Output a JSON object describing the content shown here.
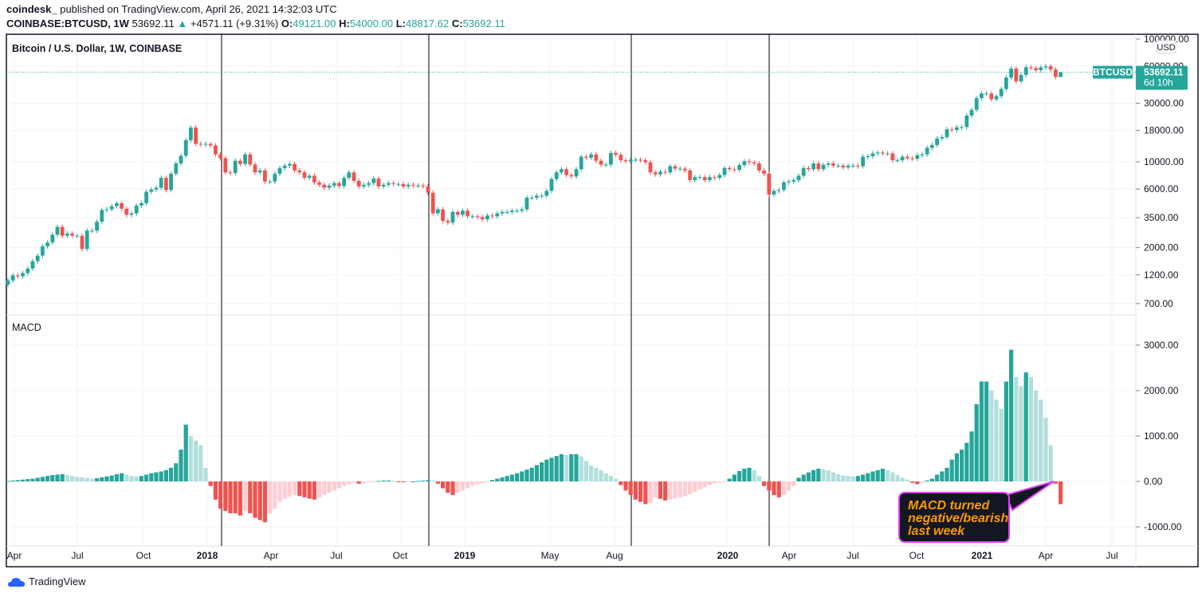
{
  "header": {
    "author": "coindesk_",
    "published": "published on TradingView.com, April 26, 2021 14:32:03 UTC",
    "symbol": "COINBASE:BTCUSD, 1W",
    "last": "53692.11",
    "change": "+4571.11 (+9.31%)",
    "o_label": "O:",
    "o": "49121.00",
    "h_label": "H:",
    "h": "54000.00",
    "l_label": "L:",
    "l": "48817.62",
    "c_label": "C:",
    "c": "53692.11"
  },
  "pane_title": "Bitcoin / U.S. Dollar, 1W, COINBASE",
  "macd_title": "MACD",
  "currency_badge": "USD",
  "price_tag": {
    "symbol": "BTCUSD",
    "price": "53692.11",
    "countdown": "6d 10h"
  },
  "annotation": {
    "lines": [
      "MACD turned",
      "negative/bearish",
      "last week"
    ]
  },
  "footer_logo": "TradingView",
  "colors": {
    "up": "#26a69a",
    "down": "#ef5350",
    "up_light": "#b2dfdb",
    "down_light": "#ffcdd2",
    "annotation_border": "#e040fb",
    "annotation_text": "#ff9800",
    "annotation_bg": "#131722"
  },
  "chart_data": [
    {
      "type": "candlestick",
      "title": "Bitcoin / U.S. Dollar, 1W, COINBASE",
      "scale": "log",
      "y_ticks": [
        "100000.00",
        "60000.00",
        "30000.00",
        "18000.00",
        "10000.00",
        "6000.00",
        "3500.00",
        "2000.00",
        "1200.00",
        "700.00"
      ],
      "x_ticks": [
        {
          "label": "Apr",
          "bold": false
        },
        {
          "label": "Jul",
          "bold": false
        },
        {
          "label": "Oct",
          "bold": false
        },
        {
          "label": "2018",
          "bold": true
        },
        {
          "label": "Apr",
          "bold": false
        },
        {
          "label": "Jul",
          "bold": false
        },
        {
          "label": "Oct",
          "bold": false
        },
        {
          "label": "2019",
          "bold": true
        },
        {
          "label": "May",
          "bold": false
        },
        {
          "label": "Aug",
          "bold": false
        },
        {
          "label": "2020",
          "bold": true
        },
        {
          "label": "Apr",
          "bold": false
        },
        {
          "label": "Jul",
          "bold": false
        },
        {
          "label": "Oct",
          "bold": false
        },
        {
          "label": "2021",
          "bold": true
        },
        {
          "label": "Apr",
          "bold": false
        },
        {
          "label": "Jul",
          "bold": false
        }
      ],
      "first_week": "2017-03-27",
      "last_candle": {
        "o": 49121.0,
        "h": 54000.0,
        "l": 48817.62,
        "c": 53692.11
      },
      "weekly_close": [
        1080,
        1190,
        1170,
        1240,
        1350,
        1550,
        1720,
        2050,
        2200,
        2550,
        2950,
        2500,
        2600,
        2500,
        2500,
        1950,
        2750,
        2750,
        3250,
        4050,
        4100,
        4350,
        4600,
        4150,
        3700,
        3800,
        4400,
        4600,
        5700,
        5950,
        6150,
        7400,
        5900,
        8000,
        9700,
        11200,
        15000,
        19000,
        14000,
        13800,
        14000,
        13600,
        11500,
        10700,
        8200,
        8100,
        10200,
        9600,
        11500,
        9500,
        8200,
        8500,
        6900,
        6900,
        8000,
        8900,
        9300,
        9600,
        8500,
        8200,
        7400,
        7700,
        6800,
        6500,
        6150,
        6400,
        6700,
        6350,
        7400,
        8200,
        7000,
        6300,
        6500,
        6700,
        7300,
        6300,
        6500,
        6700,
        6600,
        6600,
        6300,
        6500,
        6400,
        6400,
        6300,
        5600,
        3800,
        4100,
        3300,
        3200,
        3900,
        3700,
        4000,
        3600,
        3600,
        3550,
        3400,
        3650,
        3600,
        3800,
        3900,
        3900,
        4000,
        4000,
        4100,
        5100,
        5100,
        5300,
        5300,
        5800,
        7250,
        8200,
        8700,
        7800,
        7600,
        8700,
        11000,
        10800,
        11500,
        10200,
        9500,
        9500,
        11800,
        11400,
        10300,
        10100,
        10400,
        10400,
        10300,
        9900,
        8200,
        7900,
        8300,
        8200,
        9200,
        8800,
        8800,
        8500,
        7100,
        7500,
        7500,
        7100,
        7500,
        7400,
        7800,
        8900,
        8700,
        8600,
        9400,
        10100,
        9900,
        9700,
        8500,
        8000,
        5400,
        5800,
        5900,
        6800,
        6900,
        7100,
        7700,
        8900,
        8700,
        9700,
        8700,
        9450,
        9700,
        9300,
        9300,
        9000,
        9300,
        9300,
        9200,
        11000,
        11100,
        11700,
        11900,
        11700,
        11700,
        10300,
        10300,
        11000,
        10700,
        10600,
        11300,
        11500,
        13000,
        13700,
        15500,
        15900,
        18400,
        18200,
        19100,
        19200,
        23800,
        26500,
        33000,
        36000,
        36000,
        32300,
        34300,
        39200,
        48600,
        57500,
        45200,
        51000,
        59000,
        58000,
        55800,
        58800,
        60000,
        56500,
        49121,
        53692.11
      ],
      "last_price": 53692.11
    },
    {
      "type": "bar",
      "title": "MACD",
      "y_ticks": [
        "3000.00",
        "2000.00",
        "1000.00",
        "0.00",
        "-1000.00"
      ],
      "histogram": [
        10,
        20,
        30,
        40,
        50,
        60,
        80,
        100,
        120,
        140,
        150,
        160,
        140,
        120,
        100,
        90,
        80,
        60,
        70,
        90,
        110,
        130,
        160,
        180,
        150,
        120,
        110,
        120,
        150,
        180,
        200,
        220,
        250,
        300,
        400,
        700,
        1250,
        1000,
        900,
        800,
        300,
        -100,
        -400,
        -600,
        -650,
        -700,
        -700,
        -750,
        -650,
        -700,
        -800,
        -850,
        -900,
        -700,
        -600,
        -450,
        -380,
        -330,
        -300,
        -320,
        -350,
        -380,
        -400,
        -350,
        -300,
        -250,
        -200,
        -150,
        -100,
        -60,
        -30,
        -50,
        -40,
        -20,
        -10,
        10,
        20,
        20,
        10,
        -10,
        -20,
        -10,
        0,
        10,
        20,
        30,
        20,
        -50,
        -150,
        -250,
        -300,
        -250,
        -200,
        -150,
        -100,
        -60,
        -40,
        -20,
        30,
        60,
        90,
        120,
        150,
        180,
        220,
        260,
        300,
        360,
        420,
        480,
        520,
        560,
        600,
        580,
        600,
        600,
        550,
        450,
        350,
        300,
        250,
        180,
        120,
        60,
        -80,
        -200,
        -300,
        -400,
        -450,
        -500,
        -480,
        -350,
        -380,
        -420,
        -400,
        -370,
        -350,
        -320,
        -280,
        -230,
        -180,
        -130,
        -80,
        -40,
        -20,
        -10,
        60,
        150,
        230,
        280,
        300,
        250,
        120,
        -100,
        -200,
        -300,
        -350,
        -300,
        -200,
        -100,
        80,
        150,
        200,
        250,
        280,
        270,
        240,
        200,
        160,
        130,
        120,
        110,
        120,
        150,
        180,
        220,
        250,
        280,
        250,
        200,
        140,
        80,
        40,
        -30,
        -60,
        -30,
        20,
        60,
        150,
        220,
        300,
        480,
        620,
        700,
        850,
        1100,
        1700,
        2200,
        2200,
        2000,
        1800,
        1600,
        2200,
        2900,
        2300,
        2100,
        2400,
        2300,
        2000,
        1800,
        1400,
        800,
        -50,
        -500
      ]
    }
  ]
}
